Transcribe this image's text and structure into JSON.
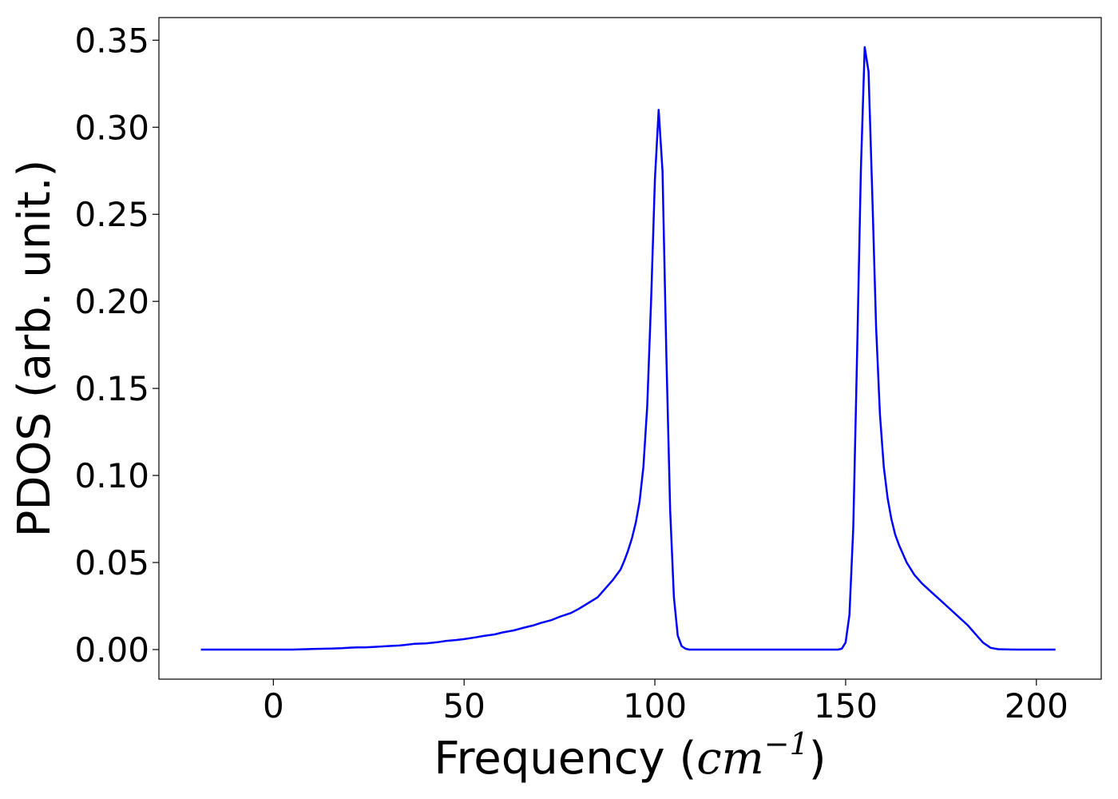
{
  "chart_data": {
    "type": "line",
    "title": "",
    "xlabel_prefix": "Frequency (",
    "xlabel_unit_base": "cm",
    "xlabel_unit_sup": "−1",
    "xlabel_suffix": ")",
    "ylabel": "PDOS (arb. unit.)",
    "xlim": [
      -30,
      217
    ],
    "ylim": [
      -0.017,
      0.363
    ],
    "xticks": [
      0,
      50,
      100,
      150,
      200
    ],
    "xtick_labels": [
      "0",
      "50",
      "100",
      "150",
      "200"
    ],
    "yticks": [
      0.0,
      0.05,
      0.1,
      0.15,
      0.2,
      0.25,
      0.3,
      0.35
    ],
    "ytick_labels": [
      "0.00",
      "0.05",
      "0.10",
      "0.15",
      "0.20",
      "0.25",
      "0.30",
      "0.35"
    ],
    "grid": false,
    "legend": "none",
    "series": [
      {
        "color": "#0000ff",
        "x": [
          -19,
          0,
          5,
          10,
          15,
          18,
          20,
          22,
          24,
          27,
          30,
          33,
          35,
          37,
          40,
          43,
          45,
          48,
          50,
          53,
          55,
          58,
          60,
          63,
          65,
          68,
          70,
          73,
          75,
          78,
          80,
          82,
          85,
          87,
          89,
          91,
          92,
          93,
          94,
          95,
          96,
          97,
          98,
          99,
          100,
          101,
          102,
          103,
          104,
          105,
          106,
          107,
          108,
          109,
          110,
          112,
          120,
          130,
          140,
          148,
          149,
          150,
          151,
          152,
          153,
          154,
          155,
          156,
          157,
          158,
          159,
          160,
          161,
          162,
          163,
          164,
          166,
          168,
          170,
          172,
          175,
          178,
          180,
          182,
          184,
          186,
          188,
          190,
          195,
          205
        ],
        "y": [
          0.0,
          0.0,
          0.0,
          0.0003,
          0.0006,
          0.0008,
          0.0011,
          0.0012,
          0.0012,
          0.0016,
          0.002,
          0.0023,
          0.0028,
          0.0033,
          0.0035,
          0.0042,
          0.0049,
          0.0055,
          0.006,
          0.007,
          0.0078,
          0.0087,
          0.0098,
          0.011,
          0.0122,
          0.0138,
          0.0152,
          0.017,
          0.0188,
          0.021,
          0.0233,
          0.026,
          0.03,
          0.035,
          0.04,
          0.046,
          0.051,
          0.057,
          0.064,
          0.073,
          0.085,
          0.105,
          0.14,
          0.2,
          0.27,
          0.31,
          0.275,
          0.17,
          0.08,
          0.03,
          0.008,
          0.002,
          0.0005,
          0.0,
          0.0,
          0.0,
          0.0,
          0.0,
          0.0,
          0.0,
          0.0005,
          0.004,
          0.02,
          0.07,
          0.17,
          0.275,
          0.346,
          0.332,
          0.26,
          0.185,
          0.135,
          0.105,
          0.087,
          0.075,
          0.066,
          0.06,
          0.05,
          0.043,
          0.038,
          0.034,
          0.028,
          0.022,
          0.018,
          0.014,
          0.009,
          0.004,
          0.001,
          0.0002,
          0.0,
          0.0
        ]
      }
    ]
  }
}
